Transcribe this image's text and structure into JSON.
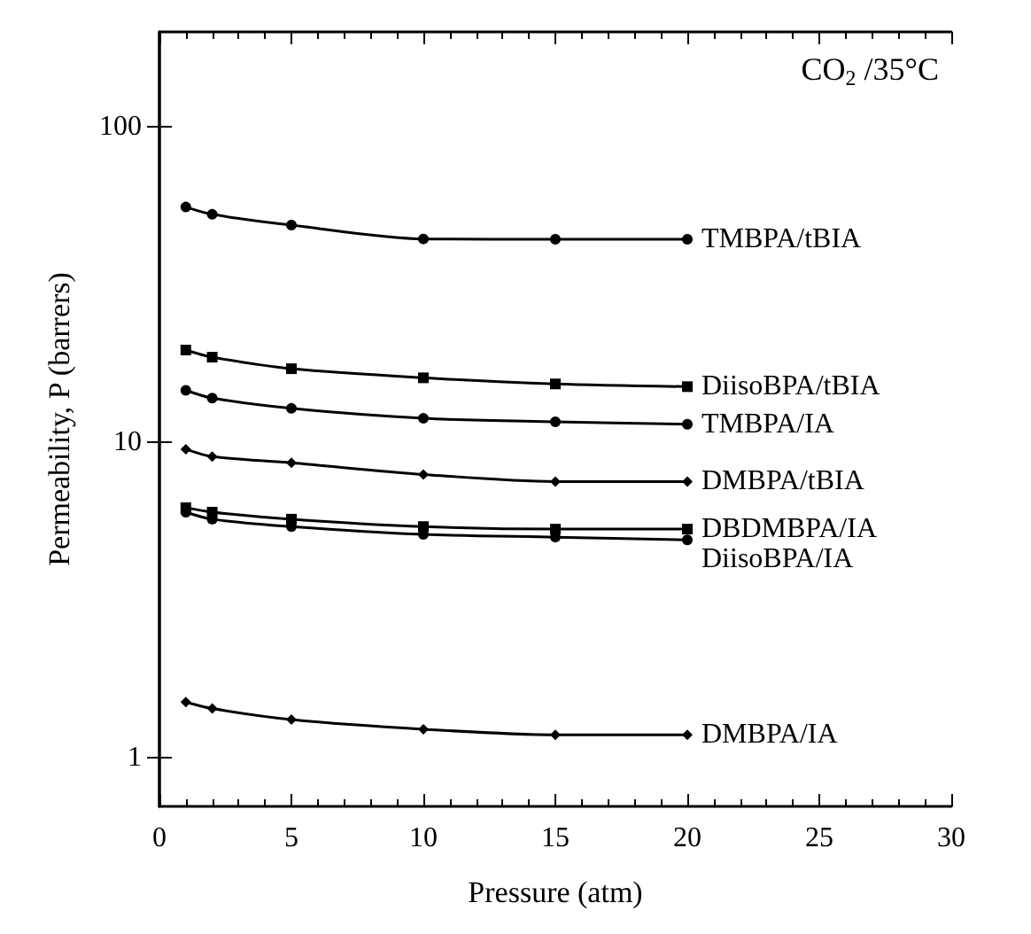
{
  "chart_data": {
    "type": "line",
    "xlabel": "Pressure (atm)",
    "ylabel": "Permeability, P (barrers)",
    "annotations": [
      "CO$_{2}$ /35°C"
    ],
    "log": "y",
    "xlim": [
      0,
      30
    ],
    "xticks": [
      0,
      5,
      10,
      15,
      20,
      25,
      30
    ],
    "ylim": [
      0.7,
      200
    ],
    "yticks": [
      1,
      10,
      100
    ],
    "grid": false,
    "legend": false,
    "line_style": "solid",
    "x": [
      1,
      2,
      5,
      10,
      15,
      20
    ],
    "series": [
      {
        "name": "TMBPA/tBIA",
        "color": "#000000",
        "marker": "circle",
        "values": [
          55.7,
          52.8,
          48.8,
          44.1,
          44.0,
          44.0
        ]
      },
      {
        "name": "DiisoBPA/tBIA",
        "color": "#000000",
        "marker": "square",
        "values": [
          19.6,
          18.6,
          17.1,
          16.0,
          15.3,
          15.0
        ]
      },
      {
        "name": "TMBPA/IA",
        "color": "#000000",
        "marker": "circle",
        "values": [
          14.6,
          13.8,
          12.8,
          11.9,
          11.6,
          11.4
        ]
      },
      {
        "name": "DMBPA/tBIA",
        "color": "#000000",
        "marker": "diamond",
        "values": [
          9.5,
          9.0,
          8.6,
          7.9,
          7.5,
          7.5
        ]
      },
      {
        "name": "DBDMBPA/IA",
        "color": "#000000",
        "marker": "square",
        "values": [
          6.2,
          6.0,
          5.7,
          5.4,
          5.3,
          5.3
        ]
      },
      {
        "name": "DiisoBPA/IA",
        "color": "#000000",
        "marker": "circle",
        "values": [
          6.0,
          5.7,
          5.4,
          5.1,
          5.0,
          4.9
        ]
      },
      {
        "name": "DMBPA/IA",
        "color": "#000000",
        "marker": "diamond",
        "values": [
          1.5,
          1.43,
          1.32,
          1.23,
          1.18,
          1.18
        ]
      }
    ]
  }
}
